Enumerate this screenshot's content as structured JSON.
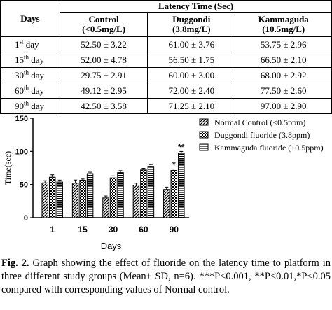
{
  "table": {
    "header_top": "Latency Time (Sec)",
    "col_days": "Days",
    "columns": [
      {
        "name": "Control",
        "conc": "(<0.5mg/L)"
      },
      {
        "name": "Duggondi",
        "conc": "(3.8mg/L)"
      },
      {
        "name": "Kammaguda",
        "conc": "(10.5mg/L)"
      }
    ],
    "rows": [
      {
        "num": "1",
        "sup": "st",
        "word": " day",
        "values": [
          "52.50 ± 3.22",
          "61.00 ± 3.76",
          "53.75 ± 2.96"
        ]
      },
      {
        "num": "15",
        "sup": "th",
        "word": " day",
        "values": [
          "52.00 ± 4.78",
          "56.50 ± 1.75",
          "66.50 ± 2.10"
        ]
      },
      {
        "num": "30",
        "sup": "th",
        "word": " day",
        "values": [
          "29.75 ± 2.91",
          "60.00 ± 3.00",
          "68.00 ± 2.92"
        ]
      },
      {
        "num": "60",
        "sup": "th",
        "word": " day",
        "values": [
          "49.12 ± 2.95",
          "72.00 ± 2.40",
          "77.50 ± 2.60"
        ]
      },
      {
        "num": "90",
        "sup": "th",
        "word": " day",
        "values": [
          "42.50 ± 3.58",
          "71.25 ± 2.10",
          "97.00 ± 2.90"
        ]
      }
    ]
  },
  "chart_data": {
    "type": "bar",
    "categories": [
      "1",
      "15",
      "30",
      "60",
      "90"
    ],
    "xlabel": "Days",
    "ylabel": "Time(sec)",
    "ylim": [
      0,
      150
    ],
    "yticks": [
      "0",
      "50",
      "100",
      "150"
    ],
    "legend_position": "top-right",
    "series": [
      {
        "name": "Normal Control (<0.5ppm)",
        "pattern": "hatch",
        "values": [
          52.5,
          52.0,
          29.75,
          49.12,
          42.5
        ],
        "errors": [
          3.22,
          4.78,
          2.91,
          2.95,
          3.58
        ]
      },
      {
        "name": "Duggondi fluoride (3.8ppm)",
        "pattern": "checker",
        "values": [
          61.0,
          56.5,
          60.0,
          72.0,
          71.25
        ],
        "errors": [
          3.76,
          1.75,
          3.0,
          2.4,
          2.1
        ]
      },
      {
        "name": "Kammaguda fluoride (10.5ppm)",
        "pattern": "stripes",
        "values": [
          53.75,
          66.5,
          68.0,
          77.5,
          97.0
        ],
        "errors": [
          2.96,
          2.1,
          2.92,
          2.6,
          2.9
        ]
      }
    ],
    "annotations": [
      {
        "category": "90",
        "series": 1,
        "text": "*"
      },
      {
        "category": "90",
        "series": 2,
        "text": "**"
      }
    ]
  },
  "caption": {
    "label": "Fig. 2.",
    "text": " Graph showing the effect of fluoride on the latency time to platform in three different study groups (Mean± SD, n=6). ***P<0.001, **P<0.01,*P<0.05 compared with corresponding values of Normal control."
  }
}
